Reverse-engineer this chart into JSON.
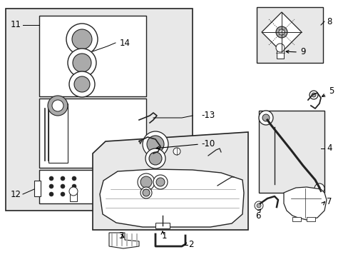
{
  "bg_color": "#ffffff",
  "box_fill": "#e8e8e8",
  "line_color": "#222222",
  "white": "#ffffff",
  "gray": "#aaaaaa",
  "figsize": [
    4.89,
    3.6
  ],
  "dpi": 100,
  "xlim": [
    0,
    489
  ],
  "ylim": [
    0,
    360
  ]
}
